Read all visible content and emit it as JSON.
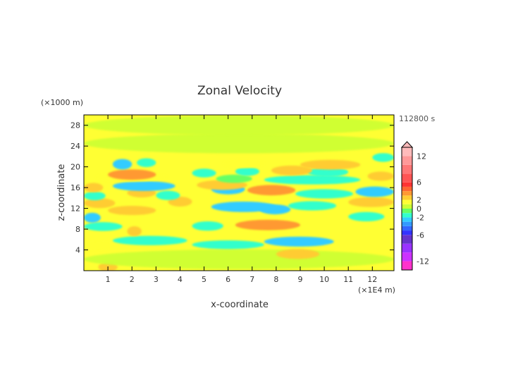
{
  "chart_data": {
    "type": "heatmap",
    "title": "Zonal Velocity",
    "xlabel": "x-coordinate",
    "ylabel": "z-coordinate",
    "x_unit": "(×1E4 m)",
    "y_unit": "(×1000 m)",
    "time_label": "112800 s",
    "xlim": [
      0,
      12.9
    ],
    "ylim": [
      0,
      30
    ],
    "x_ticks": [
      "1",
      "2",
      "3",
      "4",
      "5",
      "6",
      "7",
      "8",
      "9",
      "10",
      "11",
      "12"
    ],
    "y_ticks": [
      "4",
      "8",
      "12",
      "16",
      "20",
      "24",
      "28"
    ],
    "colorbar": {
      "tick_labels": [
        "12",
        "6",
        "2",
        "0",
        "-2",
        "-6",
        "-12"
      ],
      "levels": [
        -14,
        -12,
        -10,
        -8,
        -6,
        -5,
        -4,
        -3,
        -2,
        -1,
        0,
        1,
        2,
        3,
        4,
        5,
        6,
        8,
        10,
        12,
        14
      ],
      "colors": [
        "#ff33cc",
        "#cc33ff",
        "#9933ff",
        "#6633cc",
        "#3333ff",
        "#3366ff",
        "#3399ff",
        "#33ccff",
        "#33ffcc",
        "#66ff66",
        "#ccff33",
        "#ffff33",
        "#ffcc33",
        "#ff9933",
        "#ff6633",
        "#ff3333",
        "#ff5555",
        "#ff7777",
        "#ff9999",
        "#ffbbbb"
      ],
      "extend": "max"
    },
    "bands": [
      {
        "z": 0.7,
        "x0": 0.6,
        "x1": 1.4,
        "value": 2
      },
      {
        "z": 2.2,
        "x0": 0.0,
        "x1": 12.9,
        "value": 0.3
      },
      {
        "z": 3.2,
        "x0": 8.0,
        "x1": 9.8,
        "value": 2.5
      },
      {
        "z": 4.8,
        "x0": 0.0,
        "x1": 1.2,
        "value": 1.5
      },
      {
        "z": 5.0,
        "x0": 4.5,
        "x1": 7.5,
        "value": -1.5
      },
      {
        "z": 5.6,
        "x0": 7.5,
        "x1": 10.4,
        "value": -2.5
      },
      {
        "z": 5.8,
        "x0": 1.2,
        "x1": 4.3,
        "value": -2
      },
      {
        "z": 7.6,
        "x0": 1.8,
        "x1": 2.4,
        "value": 2.5
      },
      {
        "z": 8.5,
        "x0": 0.0,
        "x1": 1.6,
        "value": -1.5
      },
      {
        "z": 8.6,
        "x0": 4.5,
        "x1": 5.8,
        "value": -2
      },
      {
        "z": 8.8,
        "x0": 6.3,
        "x1": 9.0,
        "value": 3
      },
      {
        "z": 10.2,
        "x0": 0.0,
        "x1": 0.7,
        "value": -2.5
      },
      {
        "z": 10.4,
        "x0": 11.0,
        "x1": 12.5,
        "value": -2
      },
      {
        "z": 11.6,
        "x0": 1.0,
        "x1": 3.0,
        "value": 2
      },
      {
        "z": 11.8,
        "x0": 7.3,
        "x1": 8.6,
        "value": -2.5
      },
      {
        "z": 12.3,
        "x0": 5.3,
        "x1": 8.0,
        "value": -3
      },
      {
        "z": 12.5,
        "x0": 8.5,
        "x1": 10.5,
        "value": -2
      },
      {
        "z": 13.0,
        "x0": 0.0,
        "x1": 1.3,
        "value": 2.5
      },
      {
        "z": 13.2,
        "x0": 11.0,
        "x1": 12.9,
        "value": 2.5
      },
      {
        "z": 13.3,
        "x0": 3.5,
        "x1": 4.5,
        "value": 2.5
      },
      {
        "z": 14.4,
        "x0": 0.0,
        "x1": 0.9,
        "value": -1.5
      },
      {
        "z": 14.5,
        "x0": 3.0,
        "x1": 4.0,
        "value": -2
      },
      {
        "z": 14.8,
        "x0": 8.8,
        "x1": 11.2,
        "value": -2
      },
      {
        "z": 15.0,
        "x0": 1.8,
        "x1": 3.0,
        "value": 2
      },
      {
        "z": 15.2,
        "x0": 11.3,
        "x1": 12.9,
        "value": -3
      },
      {
        "z": 15.5,
        "x0": 6.8,
        "x1": 8.8,
        "value": 3
      },
      {
        "z": 15.7,
        "x0": 5.3,
        "x1": 6.7,
        "value": -3
      },
      {
        "z": 16.0,
        "x0": 0.0,
        "x1": 0.8,
        "value": 2
      },
      {
        "z": 16.3,
        "x0": 1.2,
        "x1": 3.8,
        "value": -2.5
      },
      {
        "z": 16.5,
        "x0": 4.7,
        "x1": 6.8,
        "value": 2.5
      },
      {
        "z": 17.5,
        "x0": 7.5,
        "x1": 11.5,
        "value": -2
      },
      {
        "z": 17.7,
        "x0": 5.5,
        "x1": 7.0,
        "value": -1
      },
      {
        "z": 18.0,
        "x0": 0.5,
        "x1": 3.5,
        "value": 1.5
      },
      {
        "z": 18.2,
        "x0": 11.8,
        "x1": 12.9,
        "value": 2
      },
      {
        "z": 18.5,
        "x0": 1.0,
        "x1": 3.0,
        "value": 3
      },
      {
        "z": 18.8,
        "x0": 4.5,
        "x1": 5.5,
        "value": -1.5
      },
      {
        "z": 19.0,
        "x0": 9.3,
        "x1": 11.0,
        "value": -2
      },
      {
        "z": 19.1,
        "x0": 6.3,
        "x1": 7.3,
        "value": -1.5
      },
      {
        "z": 19.3,
        "x0": 7.8,
        "x1": 9.5,
        "value": 2.5
      },
      {
        "z": 20.4,
        "x0": 9.0,
        "x1": 11.5,
        "value": 2.5
      },
      {
        "z": 20.5,
        "x0": 1.2,
        "x1": 2.0,
        "value": -3
      },
      {
        "z": 20.6,
        "x0": 5.8,
        "x1": 7.5,
        "value": 1.5
      },
      {
        "z": 20.8,
        "x0": 2.2,
        "x1": 3.0,
        "value": -1.5
      },
      {
        "z": 21.8,
        "x0": 12.0,
        "x1": 12.9,
        "value": -1.5
      },
      {
        "z": 24.5,
        "x0": 0.0,
        "x1": 12.9,
        "value": 0.6
      },
      {
        "z": 28.0,
        "x0": 0.0,
        "x1": 12.9,
        "value": 0.4
      }
    ]
  }
}
